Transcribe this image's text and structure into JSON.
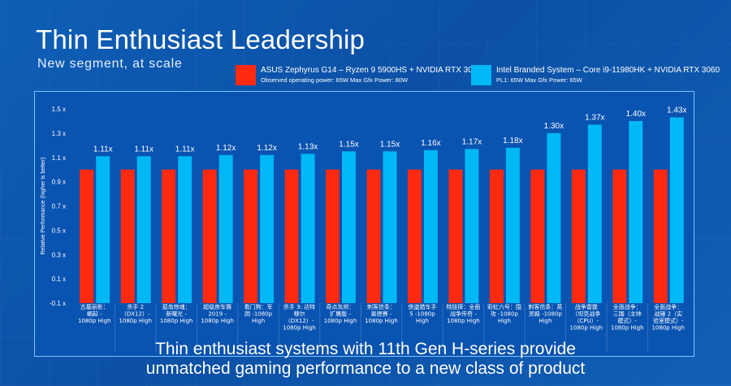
{
  "title": "Thin Enthusiast Leadership",
  "subtitle": "New segment, at scale",
  "legend": [
    {
      "label": "ASUS Zephyrus G14 – Ryzen 9 5900HS + NVIDIA RTX 3060",
      "note": "Observed operating power: 65W  Max Gfx Power: 80W",
      "color": "#ff2a10"
    },
    {
      "label": "Intel Branded System – Core i9-11980HK + NVIDIA RTX 3060",
      "note": "PL1: 65W Max Gfx Power: 65W",
      "color": "#00b8f5"
    }
  ],
  "footer": {
    "line1": "Thin enthusiast systems with 11th Gen H-series provide",
    "line2": "unmatched gaming performance to a new class of product"
  },
  "chart_data": {
    "type": "bar",
    "title": "Thin Enthusiast Leadership",
    "ylabel": "Relative Performance (higher is better)",
    "xlabel": "",
    "ylim": [
      -0.1,
      1.5
    ],
    "yticks": [
      "-0.1 x",
      "0.1 x",
      "0.3 x",
      "0.5 x",
      "0.7 x",
      "0.9 x",
      "1.1 x",
      "1.3 x",
      "1.5 x"
    ],
    "ytick_values": [
      -0.1,
      0.1,
      0.3,
      0.5,
      0.7,
      0.9,
      1.1,
      1.3,
      1.5
    ],
    "categories": [
      [
        "古墓丽影：",
        "崛起 -",
        "1080p High"
      ],
      [
        "杀手 2",
        "（DX12）-",
        "1080p High"
      ],
      [
        "孤岛惊魂：",
        "新曙光 -",
        "1080p High"
      ],
      [
        "超级房车赛",
        "2019 -",
        "1080p High"
      ],
      [
        "看门狗：军",
        "团 -1080p",
        "High"
      ],
      [
        "杀手 3: 达特",
        "穆尔",
        "（DX12）-",
        "1080p High"
      ],
      [
        "奇点灰烬：",
        "扩展版 -",
        "1080p High"
      ],
      [
        "刺客信条：",
        "奥德赛 -",
        "1080p High"
      ],
      [
        "侠盗猎车手",
        "5 -1080p",
        "High"
      ],
      [
        "特技摔：全面",
        "战争传奇 -",
        "1080p High"
      ],
      [
        "彩虹六号：围",
        "攻 -1080p",
        "High"
      ],
      [
        "刺客信条：英",
        "灵殿 -1080p",
        "High"
      ],
      [
        "战争雷霆",
        "（坦克战争",
        "（CPU）-",
        "1080p High"
      ],
      [
        "全面战争：",
        "三国（主帅",
        "模式）-",
        "1080p High"
      ],
      [
        "全面战争：",
        "战锤 2（实",
        "验室模式）-",
        "1080p High"
      ]
    ],
    "series": [
      {
        "name": "ASUS Zephyrus G14 – Ryzen 9 5900HS + NVIDIA RTX 3060",
        "values": [
          1,
          1,
          1,
          1,
          1,
          1,
          1,
          1,
          1,
          1,
          1,
          1,
          1,
          1,
          1
        ]
      },
      {
        "name": "Intel Branded System – Core i9-11980HK + NVIDIA RTX 3060",
        "values": [
          1.11,
          1.11,
          1.11,
          1.12,
          1.12,
          1.13,
          1.15,
          1.15,
          1.16,
          1.17,
          1.18,
          1.3,
          1.37,
          1.4,
          1.43
        ]
      }
    ],
    "data_labels": [
      "1.11x",
      "1.11x",
      "1.11x",
      "1.12x",
      "1.12x",
      "1.13x",
      "1.15x",
      "1.15x",
      "1.16x",
      "1.17x",
      "1.18x",
      "1.30x",
      "1.37x",
      "1.40x",
      "1.43x"
    ],
    "legend_position": "top"
  }
}
